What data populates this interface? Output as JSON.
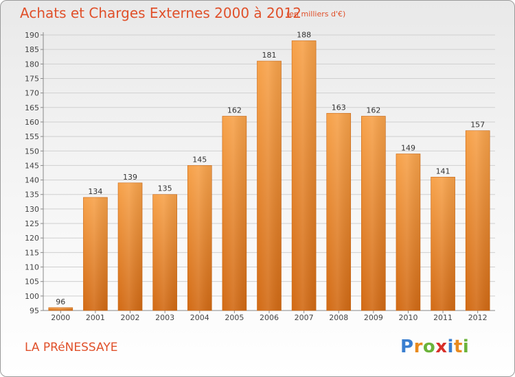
{
  "header": {
    "title": "Achats et Charges Externes 2000 à 2012",
    "subtitle": "(en milliers d'€)"
  },
  "footer": {
    "commune": "LA PRéNESSAYE",
    "logo_text": "Proxiti",
    "logo_letters": [
      "P",
      "r",
      "o",
      "x",
      "i",
      "t",
      "i"
    ],
    "logo_colors": [
      "#3a7fd0",
      "#e98a1d",
      "#6bb33a",
      "#d8302a",
      "#3a7fd0",
      "#e98a1d",
      "#6bb33a"
    ]
  },
  "colors": {
    "bar_top": "#f7a24a",
    "bar_bottom": "#d26a14",
    "accent": "#e0502a",
    "grid": "#cfcfcf",
    "axis_text": "#444444"
  },
  "chart_data": {
    "type": "bar",
    "categories": [
      "2000",
      "2001",
      "2002",
      "2003",
      "2004",
      "2005",
      "2006",
      "2007",
      "2008",
      "2009",
      "2010",
      "2011",
      "2012"
    ],
    "values": [
      96,
      134,
      139,
      135,
      145,
      162,
      181,
      188,
      163,
      162,
      149,
      141,
      157
    ],
    "ylim": [
      95,
      190
    ],
    "yticks": [
      95,
      100,
      105,
      110,
      115,
      120,
      125,
      130,
      135,
      140,
      145,
      150,
      155,
      160,
      165,
      170,
      175,
      180,
      185,
      190
    ],
    "grid": true,
    "title": "Achats et Charges Externes 2000 à 2012",
    "subtitle": "(en milliers d'€)",
    "xlabel": "",
    "ylabel": ""
  }
}
